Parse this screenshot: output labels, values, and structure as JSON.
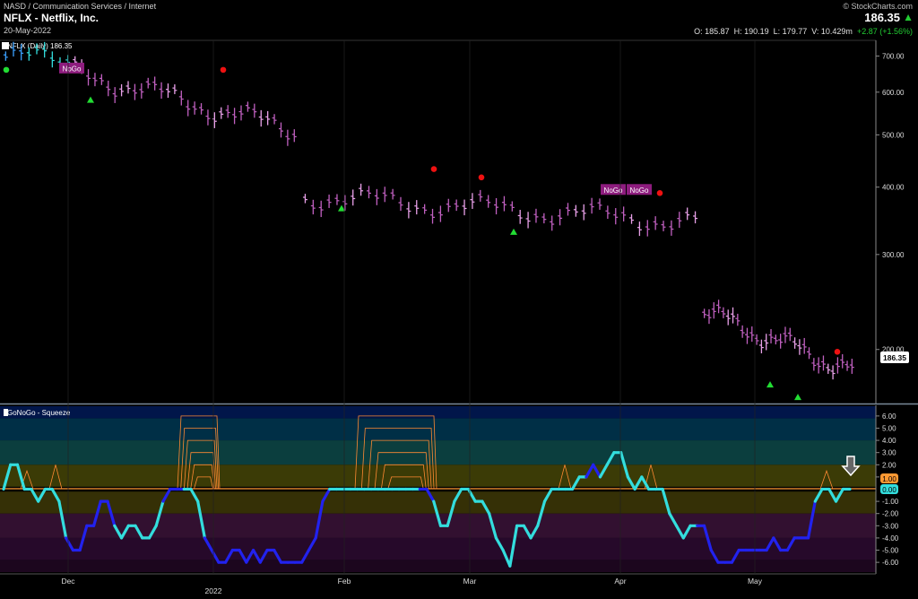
{
  "header": {
    "category": "NASD / Communication Services / Internet",
    "brand": "© StockCharts.com",
    "title": "NFLX - Netflix, Inc.",
    "date": "20-May-2022",
    "last": "186.35",
    "last_icon": "up-triangle-icon",
    "ohlc": {
      "open": "O: 185.87",
      "high": "H: 190.19",
      "low": "L: 179.77",
      "volume": "V: 10.429m",
      "change": "+2.87 (+1.56%)"
    }
  },
  "chart_data": [
    {
      "type": "candlestick",
      "legend": "NFLX (Daily) 186.35",
      "scale": "log",
      "y_ticks": [
        "700.00",
        "600.00",
        "500.00",
        "400.00",
        "300.00",
        "200.00"
      ],
      "ylim": [
        160,
        740
      ],
      "last_price_label": "186.35",
      "x_labels": [
        "Dec",
        "2022",
        "Feb",
        "Mar",
        "Apr",
        "May"
      ],
      "color_legend": {
        "go_strong": "#3aa0ff",
        "go": "#33dddd",
        "nogo": "#9a2d9a",
        "nogo_weak": "#e8a0e8",
        "neutral": "#ffffff",
        "amber": "#ff9933"
      },
      "segments": [
        {
          "n": 9,
          "start": 700,
          "end": 685,
          "color": "#33dddd"
        },
        {
          "n": 34,
          "start": 655,
          "end": 510,
          "color": "#c060c0"
        },
        {
          "n": 50,
          "start": 385,
          "end": 345,
          "color": "#c060c0"
        },
        {
          "n": 32,
          "start": 235,
          "end": 183,
          "color": "#c060c0"
        }
      ],
      "nogo_labels": [
        "NoGo",
        "NoGo",
        "NoGo"
      ],
      "signals": [
        {
          "kind": "red-dot",
          "value": 660
        },
        {
          "kind": "red-dot",
          "value": 432
        },
        {
          "kind": "red-dot",
          "value": 417
        },
        {
          "kind": "red-dot",
          "value": 390
        },
        {
          "kind": "red-dot",
          "value": 198
        },
        {
          "kind": "green-dot",
          "value": 660
        },
        {
          "kind": "green-triangle",
          "value": 580
        },
        {
          "kind": "green-triangle",
          "value": 365
        },
        {
          "kind": "green-triangle",
          "value": 330
        },
        {
          "kind": "green-triangle",
          "value": 172
        },
        {
          "kind": "green-triangle",
          "value": 163
        }
      ]
    },
    {
      "type": "line",
      "title": "GoNoGo - Squeeze",
      "ylim": [
        -6.8,
        6.8
      ],
      "y_ticks": [
        "6.00",
        "5.00",
        "4.00",
        "3.00",
        "2.00",
        "1.00",
        "-1.00",
        "-2.00",
        "-3.00",
        "-4.00",
        "-5.00",
        "-6.00"
      ],
      "badge_upper": "1.00",
      "badge_zero": "0.00",
      "zero_line_color": "#ff9933",
      "series_color": "#33dddd",
      "squeeze_color": "#2222ee",
      "values": [
        0,
        2,
        2,
        0,
        0,
        -1,
        0,
        0,
        -1,
        -4,
        -5,
        -5,
        -3,
        -3,
        -1,
        -1,
        -3,
        -4,
        -3,
        -3,
        -4,
        -4,
        -3,
        -1,
        0,
        0,
        0,
        0,
        -1,
        -4,
        -5,
        -6,
        -6,
        -5,
        -5,
        -6,
        -5,
        -6,
        -5,
        -5,
        -6,
        -6,
        -6,
        -6,
        -5,
        -4,
        -1,
        0,
        0,
        0,
        0,
        0,
        0,
        0,
        0,
        0,
        0,
        0,
        0,
        0,
        0,
        0,
        -1,
        -3,
        -3,
        -1,
        0,
        0,
        -1,
        -1,
        -2,
        -4,
        -5,
        -6.3,
        -3,
        -3,
        -4,
        -3,
        -1,
        0,
        0,
        0,
        0,
        1,
        1,
        2,
        1,
        2,
        3,
        3,
        1,
        0,
        1,
        0,
        0,
        0,
        -2,
        -3,
        -4,
        -3,
        -3,
        -3,
        -5,
        -6,
        -6,
        -6,
        -5,
        -5,
        -5,
        -5,
        -5,
        -4,
        -5,
        -5,
        -4,
        -4,
        -4,
        -1,
        0,
        0,
        -1,
        0,
        0
      ],
      "blue_ranges": [
        [
          9,
          16
        ],
        [
          23,
          26
        ],
        [
          29,
          47
        ],
        [
          60,
          62
        ],
        [
          84,
          86
        ],
        [
          100,
          117
        ]
      ],
      "bands": [
        {
          "from": 6.8,
          "to": 5.8,
          "color": "#01164a"
        },
        {
          "from": 5.8,
          "to": 4.0,
          "color": "#002f46"
        },
        {
          "from": 4.0,
          "to": 2.0,
          "color": "#0b3e3e"
        },
        {
          "from": 2.0,
          "to": 0.2,
          "color": "#3b3b06"
        },
        {
          "from": -0.2,
          "to": -2.0,
          "color": "#353006"
        },
        {
          "from": -2.0,
          "to": -4.0,
          "color": "#321030"
        },
        {
          "from": -4.0,
          "to": -5.8,
          "color": "#26092a"
        },
        {
          "from": -5.8,
          "to": -6.8,
          "color": "#1c061e"
        }
      ],
      "arrow_icon": "down-arrow-icon"
    }
  ]
}
